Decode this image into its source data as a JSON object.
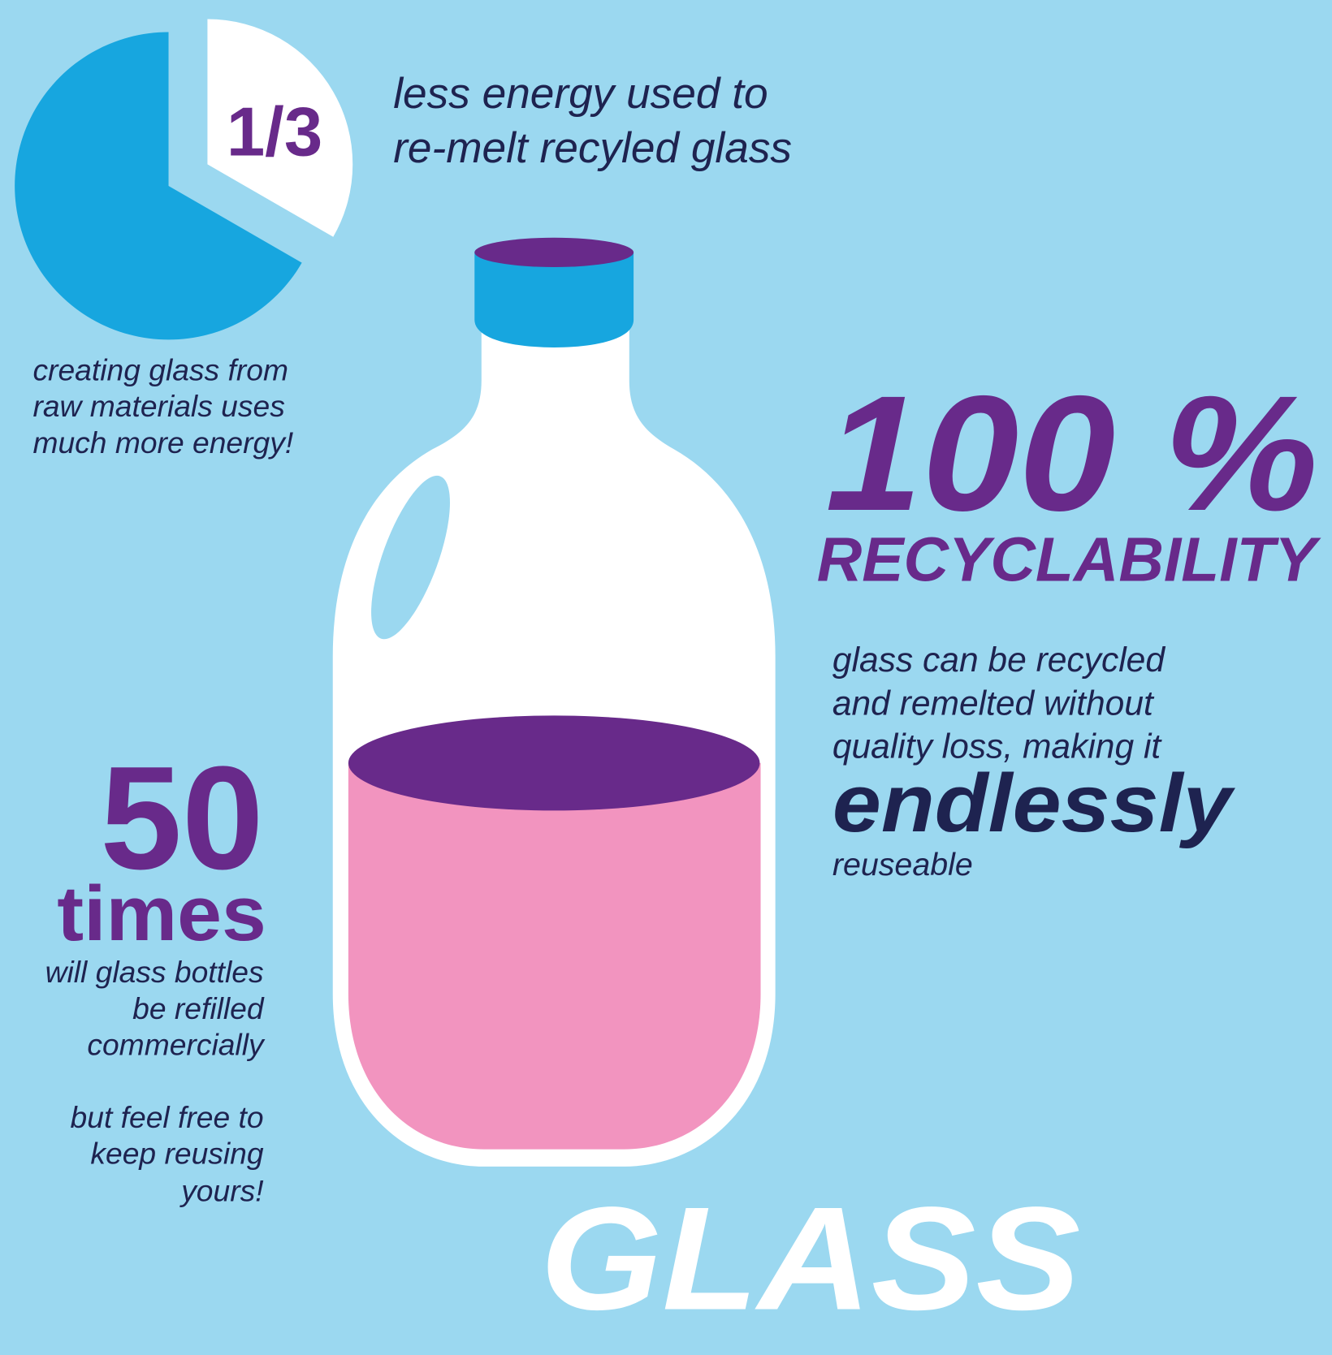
{
  "energy": {
    "fraction": "1/3",
    "caption": [
      "less energy used to",
      "re-melt recyled glass"
    ],
    "note": [
      "creating glass from",
      "raw materials uses",
      "much more energy!"
    ]
  },
  "recyclability": {
    "figure": "100 %",
    "label": "RECYCLABILITY",
    "text": [
      "glass can be recycled",
      "and remelted without",
      "quality loss, making it"
    ],
    "emphasis": "endlessly",
    "tail": "reuseable"
  },
  "refills": {
    "figure": "50",
    "unit": "times",
    "text": [
      "will glass bottles",
      "be refilled",
      "commercially"
    ],
    "aside": [
      "but feel free to",
      "keep reusing",
      "yours!"
    ]
  },
  "title": "GLASS"
}
